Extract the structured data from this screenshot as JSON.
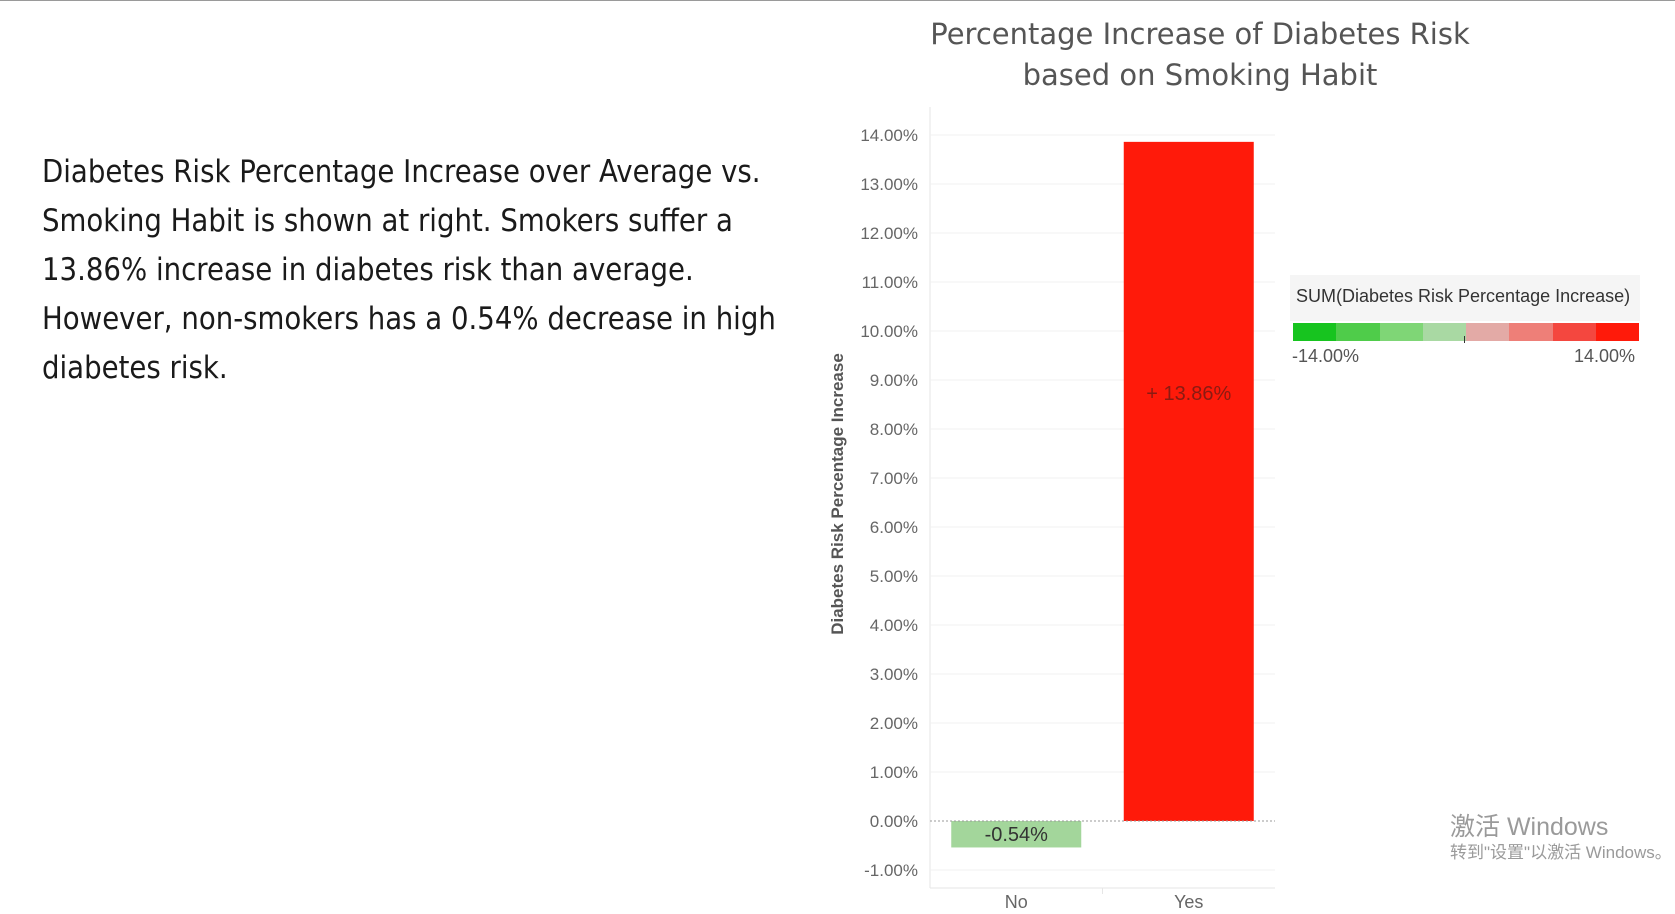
{
  "description": {
    "lines": [
      "Diabetes Risk Percentage Increase over Average vs.",
      "Smoking Habit is shown at right. Smokers suffer a",
      "13.86% increase in diabetes risk than average.",
      "However, non-smokers has a 0.54% decrease in high",
      "diabetes risk."
    ]
  },
  "chart_data": {
    "type": "bar",
    "title": "Percentage Increase of Diabetes Risk based on Smoking Habit",
    "title_lines": [
      "Percentage Increase of Diabetes Risk",
      "based on Smoking Habit"
    ],
    "xlabel": "",
    "ylabel": "Diabetes Risk Percentage Increase",
    "categories": [
      "No",
      "Yes"
    ],
    "values": [
      -0.54,
      13.86
    ],
    "data_labels": [
      "-0.54%",
      "+ 13.86%"
    ],
    "bar_colors": [
      "#a3d69b",
      "#ff1a0a"
    ],
    "ylim": [
      -1.2,
      14.3
    ],
    "y_ticks": [
      -1,
      0,
      1,
      2,
      3,
      4,
      5,
      6,
      7,
      8,
      9,
      10,
      11,
      12,
      13,
      14
    ],
    "y_tick_labels": [
      "-1.00%",
      "0.00%",
      "1.00%",
      "2.00%",
      "3.00%",
      "4.00%",
      "5.00%",
      "6.00%",
      "7.00%",
      "8.00%",
      "9.00%",
      "10.00%",
      "11.00%",
      "12.00%",
      "13.00%",
      "14.00%"
    ],
    "grid": true,
    "legend": {
      "title": "SUM(Diabetes Risk Percentage Increase)",
      "min_label": "-14.00%",
      "max_label": "14.00%",
      "placement": "right",
      "ramp_colors": [
        "#17c41f",
        "#4fcc4a",
        "#7fd676",
        "#a9d9a3",
        "#e3aaa6",
        "#ee7f78",
        "#f4473f",
        "#ff1a0a"
      ]
    }
  },
  "watermark": {
    "line1": "激活 Windows",
    "line2": "转到\"设置\"以激活 Windows。"
  }
}
